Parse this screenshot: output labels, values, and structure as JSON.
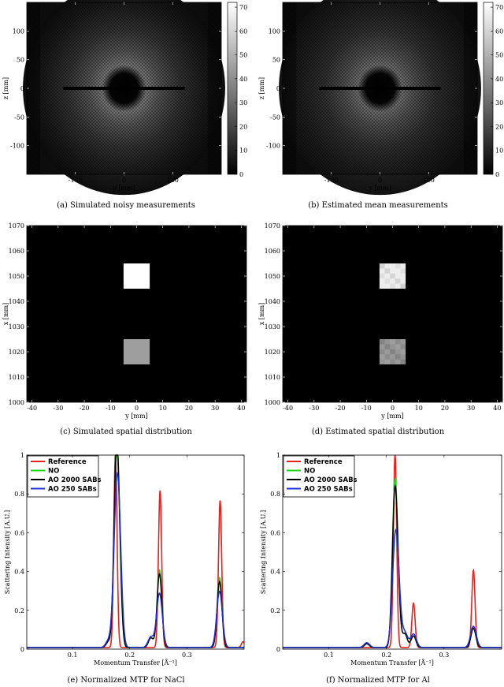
{
  "colors": {
    "reference": "#e8211d",
    "no": "#1fd61f",
    "ao2000": "#000000",
    "ao250": "#1f2fd8"
  },
  "chart_data": [
    {
      "id": "a",
      "type": "heatmap",
      "caption": "(a)  Simulated noisy measurements",
      "xlabel": "y [mm]",
      "ylabel": "z [mm]",
      "xticks": [
        -100,
        0,
        100
      ],
      "yticks": [
        100,
        50,
        0,
        -50,
        -100
      ],
      "xlim": [
        -200,
        200
      ],
      "ylim": [
        -150,
        150
      ],
      "colorbar_ticks": [
        70,
        60,
        50,
        40,
        30,
        20,
        10,
        0
      ]
    },
    {
      "id": "b",
      "type": "heatmap",
      "caption": "(b)  Estimated mean measurements",
      "xlabel": "y [mm]",
      "ylabel": "z [mm]",
      "xticks": [
        -100,
        0,
        100
      ],
      "yticks": [
        100,
        50,
        0,
        -50,
        -100
      ],
      "xlim": [
        -200,
        200
      ],
      "ylim": [
        -150,
        150
      ],
      "colorbar_ticks": [
        70,
        60,
        50,
        40,
        30,
        20,
        10,
        0
      ]
    },
    {
      "id": "c",
      "type": "heatmap",
      "caption": "(c)  Simulated spatial distribution",
      "xlabel": "y [mm]",
      "ylabel": "x [mm]",
      "xticks": [
        -40,
        -30,
        -20,
        -10,
        0,
        10,
        20,
        30,
        40
      ],
      "yticks": [
        1070,
        1060,
        1050,
        1040,
        1030,
        1020,
        1010,
        1000
      ],
      "xlim": [
        -42,
        42
      ],
      "ylim": [
        1000,
        1070
      ],
      "blocks": [
        {
          "x": [
            -5,
            5
          ],
          "y": [
            1045,
            1055
          ],
          "level": 1.0
        },
        {
          "x": [
            -5,
            5
          ],
          "y": [
            1015,
            1025
          ],
          "level": 0.62
        }
      ]
    },
    {
      "id": "d",
      "type": "heatmap",
      "caption": "(d)  Estimated spatial distribution",
      "xlabel": "y [mm]",
      "ylabel": "x [mm]",
      "xticks": [
        -40,
        -30,
        -20,
        -10,
        0,
        10,
        20,
        30,
        40
      ],
      "yticks": [
        1070,
        1060,
        1050,
        1040,
        1030,
        1020,
        1010,
        1000
      ],
      "xlim": [
        -42,
        42
      ],
      "ylim": [
        1000,
        1070
      ],
      "blocks": [
        {
          "x": [
            -5,
            5
          ],
          "y": [
            1045,
            1055
          ],
          "level": 0.93
        },
        {
          "x": [
            -5,
            5
          ],
          "y": [
            1015,
            1025
          ],
          "level": 0.58
        }
      ]
    },
    {
      "id": "e",
      "type": "line",
      "caption": "(e)  Normalized MTP for NaCl",
      "xlabel": "Momentum Transfer [Å⁻¹]",
      "ylabel": "Scattering Intensity [A.U.]",
      "xticks": [
        0.1,
        0.2,
        0.3
      ],
      "yticks": [
        1,
        0.8,
        0.6,
        0.4,
        0.2,
        0
      ],
      "xlim": [
        0.02,
        0.4
      ],
      "ylim": [
        0,
        1
      ],
      "legend": [
        "Reference",
        "NO",
        "AO 2000 SABs",
        "AO 250 SABs"
      ],
      "series": [
        {
          "name": "Reference",
          "width": 0.004,
          "peaks": [
            [
              0.175,
              1.0
            ],
            [
              0.253,
              0.81
            ],
            [
              0.358,
              0.76
            ],
            [
              0.398,
              0.03
            ]
          ]
        },
        {
          "name": "NO",
          "width": 0.006,
          "peaks": [
            [
              0.163,
              0.03
            ],
            [
              0.176,
              0.76
            ],
            [
              0.181,
              0.42
            ],
            [
              0.237,
              0.05
            ],
            [
              0.252,
              0.4
            ],
            [
              0.357,
              0.36
            ]
          ]
        },
        {
          "name": "AO 2000 SABs",
          "width": 0.006,
          "peaks": [
            [
              0.163,
              0.03
            ],
            [
              0.176,
              0.8
            ],
            [
              0.181,
              0.45
            ],
            [
              0.237,
              0.05
            ],
            [
              0.252,
              0.38
            ],
            [
              0.357,
              0.34
            ]
          ]
        },
        {
          "name": "AO 250 SABs",
          "width": 0.007,
          "peaks": [
            [
              0.163,
              0.035
            ],
            [
              0.176,
              0.52
            ],
            [
              0.181,
              0.5
            ],
            [
              0.237,
              0.055
            ],
            [
              0.252,
              0.28
            ],
            [
              0.357,
              0.29
            ]
          ]
        }
      ]
    },
    {
      "id": "f",
      "type": "line",
      "caption": "(f)  Normalized MTP for Al",
      "xlabel": "Momentum Transfer [Å⁻¹]",
      "ylabel": "Scattering Intensity [A.U.]",
      "xticks": [
        0.1,
        0.2,
        0.3
      ],
      "yticks": [
        1,
        0.8,
        0.6,
        0.4,
        0.2,
        0
      ],
      "xlim": [
        0.02,
        0.4
      ],
      "ylim": [
        0,
        1
      ],
      "legend": [
        "Reference",
        "NO",
        "AO 2000 SABs",
        "AO 250 SABs"
      ],
      "series": [
        {
          "name": "Reference",
          "width": 0.004,
          "peaks": [
            [
              0.215,
              1.0
            ],
            [
              0.247,
              0.23
            ],
            [
              0.351,
              0.4
            ]
          ]
        },
        {
          "name": "NO",
          "width": 0.006,
          "peaks": [
            [
              0.166,
              0.02
            ],
            [
              0.214,
              0.7
            ],
            [
              0.219,
              0.3
            ],
            [
              0.232,
              0.07
            ],
            [
              0.247,
              0.06
            ],
            [
              0.351,
              0.1
            ]
          ]
        },
        {
          "name": "AO 2000 SABs",
          "width": 0.006,
          "peaks": [
            [
              0.166,
              0.02
            ],
            [
              0.214,
              0.66
            ],
            [
              0.219,
              0.3
            ],
            [
              0.232,
              0.07
            ],
            [
              0.247,
              0.06
            ],
            [
              0.351,
              0.1
            ]
          ]
        },
        {
          "name": "AO 250 SABs",
          "width": 0.007,
          "peaks": [
            [
              0.166,
              0.025
            ],
            [
              0.214,
              0.35
            ],
            [
              0.219,
              0.34
            ],
            [
              0.232,
              0.075
            ],
            [
              0.247,
              0.07
            ],
            [
              0.351,
              0.11
            ]
          ]
        }
      ]
    }
  ]
}
